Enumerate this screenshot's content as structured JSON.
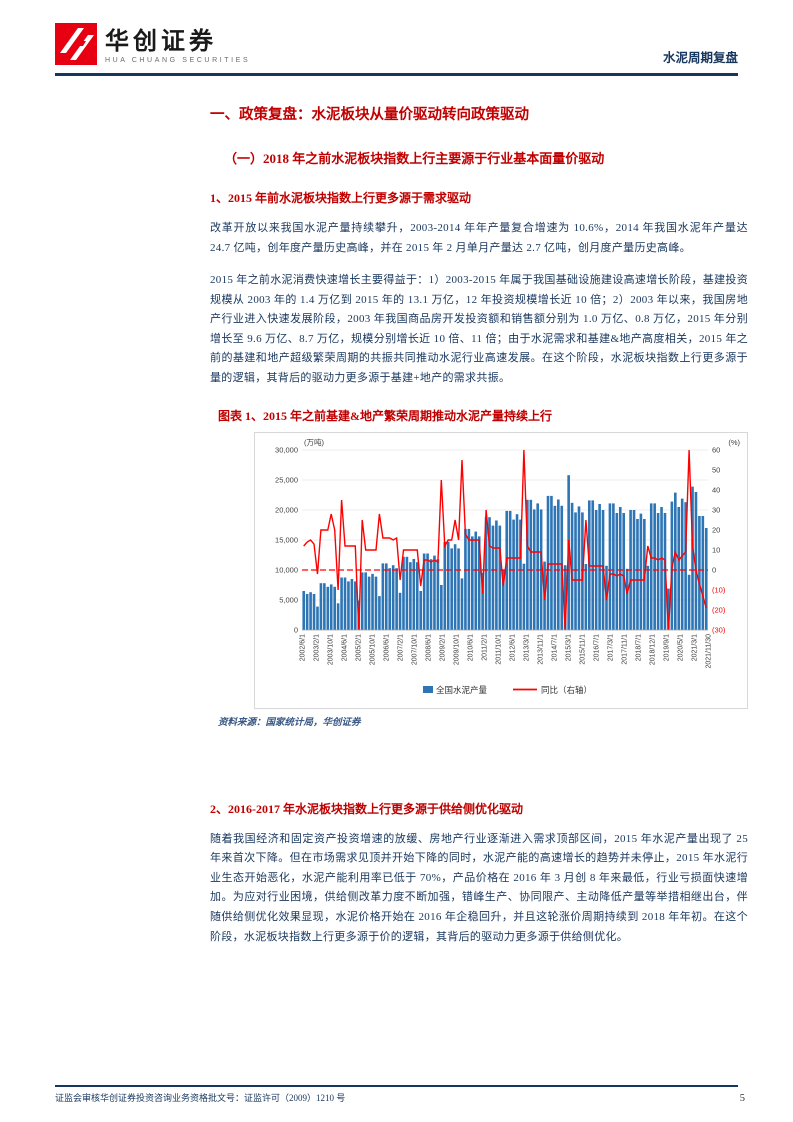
{
  "header": {
    "brand_cn": "华创证券",
    "brand_en": "HUA CHUANG SECURITIES",
    "doc_label": "水泥周期复盘"
  },
  "content": {
    "h1": "一、政策复盘：水泥板块从量价驱动转向政策驱动",
    "h2": "（一）2018 年之前水泥板块指数上行主要源于行业基本面量价驱动",
    "h3_1": "1、2015 年前水泥板块指数上行更多源于需求驱动",
    "para1": "改革开放以来我国水泥产量持续攀升，2003-2014 年年产量复合增速为 10.6%，2014 年我国水泥年产量达 24.7 亿吨，创年度产量历史高峰，并在 2015 年 2 月单月产量达 2.7 亿吨，创月度产量历史高峰。",
    "para2": "2015 年之前水泥消费快速增长主要得益于：1）2003-2015 年属于我国基础设施建设高速增长阶段，基建投资规模从 2003 年的 1.4 万亿到 2015 年的 13.1 万亿，12 年投资规模增长近 10 倍；2）2003 年以来，我国房地产行业进入快速发展阶段，2003 年我国商品房开发投资额和销售额分别为 1.0 万亿、0.8 万亿，2015 年分别增长至 9.6 万亿、8.7 万亿，规模分别增长近 10 倍、11 倍；由于水泥需求和基建&地产高度相关，2015 年之前的基建和地产超级繁荣周期的共振共同推动水泥行业高速发展。在这个阶段，水泥板块指数上行更多源于量的逻辑，其背后的驱动力更多源于基建+地产的需求共振。",
    "figure_caption": "图表 1、2015 年之前基建&地产繁荣周期推动水泥产量持续上行",
    "figure_source": "资料来源：国家统计局，华创证券",
    "h3_2": "2、2016-2017 年水泥板块指数上行更多源于供给侧优化驱动",
    "para3": "随着我国经济和固定资产投资增速的放缓、房地产行业逐渐进入需求顶部区间，2015 年水泥产量出现了 25 年来首次下降。但在市场需求见顶并开始下降的同时，水泥产能的高速增长的趋势并未停止，2015 年水泥行业生态开始恶化，水泥产能利用率已低于 70%，产品价格在 2016 年 3 月创 8 年来最低，行业亏损面快速增加。为应对行业困境，供给侧改革力度不断加强，错峰生产、协同限产、主动降低产量等举措相继出台，伴随供给侧优化效果显现，水泥价格开始在 2016 年企稳回升，并且这轮涨价周期持续到 2018 年年初。在这个阶段，水泥板块指数上行更多源于价的逻辑，其背后的驱动力更多源于供给侧优化。"
  },
  "footer": {
    "left": "证监会审核华创证券投资咨询业务资格批文号：证监许可（2009）1210 号",
    "page_number": "5"
  },
  "colors": {
    "heading_red": "#c00000",
    "body_blue": "#17365d",
    "navy_rule": "#17365d",
    "bar_blue": "#2e75b6",
    "line_red": "#ff0000",
    "logo_red": "#e60012"
  },
  "chart_data": {
    "type": "bar+line",
    "title": "2015 年之前基建&地产繁荣周期推动水泥产量持续上行",
    "note": "monthly series estimated from figure (bimonthly sampling 2002/6–2021/11)",
    "unit_left": "(万吨)",
    "unit_right": "(%)",
    "left_axis": {
      "min": 0,
      "max": 30000,
      "step": 5000,
      "labels": [
        "0",
        "5,000",
        "10,000",
        "15,000",
        "20,000",
        "25,000",
        "30,000"
      ]
    },
    "right_axis": {
      "min": -30,
      "max": 60,
      "step": 10,
      "labels": [
        "(30)",
        "(20)",
        "(10)",
        "0",
        "10",
        "20",
        "30",
        "40",
        "50",
        "60"
      ]
    },
    "zero_line": {
      "axis": "right",
      "value": 0,
      "style": "dashed",
      "color": "#ff0000"
    },
    "x_tick_labels": [
      "2002/6/1",
      "2003/2/1",
      "2003/10/1",
      "2004/6/1",
      "2005/2/1",
      "2005/10/1",
      "2006/6/1",
      "2007/2/1",
      "2007/10/1",
      "2008/6/1",
      "2009/2/1",
      "2009/10/1",
      "2010/6/1",
      "2011/2/1",
      "2011/10/1",
      "2012/6/1",
      "2013/3/1",
      "2013/11/1",
      "2014/7/1",
      "2015/3/1",
      "2015/11/1",
      "2016/7/1",
      "2017/3/1",
      "2017/11/1",
      "2018/7/1",
      "2018/12/1",
      "2019/9/1",
      "2020/5/1",
      "2021/3/1",
      "2021/11/30"
    ],
    "legend": [
      {
        "label": "全国水泥产量",
        "color": "#2e75b6",
        "type": "bar"
      },
      {
        "label": "同比（右轴）",
        "color": "#ff0000",
        "type": "line"
      }
    ],
    "production": [
      6500,
      6000,
      6300,
      6000,
      3900,
      7800,
      7800,
      7200,
      7600,
      7200,
      4450,
      8750,
      8750,
      8100,
      8500,
      8100,
      4900,
      9600,
      9600,
      8900,
      9350,
      8900,
      5650,
      11100,
      11100,
      10300,
      10800,
      10300,
      6200,
      12200,
      12200,
      11300,
      11850,
      11300,
      6500,
      12750,
      12750,
      11800,
      12400,
      11800,
      7500,
      14700,
      14700,
      13600,
      14300,
      13600,
      8600,
      16850,
      16850,
      15600,
      16400,
      15600,
      9550,
      18800,
      18800,
      17400,
      18250,
      17400,
      10100,
      19850,
      19850,
      18400,
      19300,
      18400,
      11050,
      21700,
      21700,
      20100,
      21100,
      20100,
      11400,
      22350,
      22350,
      20700,
      21750,
      20700,
      10800,
      25800,
      21200,
      19600,
      20600,
      19600,
      11000,
      21600,
      21600,
      20000,
      21000,
      20000,
      10700,
      21100,
      21100,
      19500,
      20500,
      19500,
      10200,
      20000,
      20000,
      18500,
      19400,
      18500,
      10700,
      21100,
      21100,
      19500,
      20500,
      19500,
      6900,
      21400,
      22900,
      20500,
      21900,
      21300,
      9200,
      23900,
      23000,
      19000,
      19000,
      17000
    ],
    "yoy": [
      12,
      14,
      15,
      13,
      -2,
      20,
      20,
      20,
      28,
      20,
      -10,
      35,
      12,
      12,
      12,
      12,
      -32,
      25,
      10,
      10,
      10,
      10,
      28,
      16,
      16,
      16,
      15,
      16,
      -5,
      10,
      10,
      10,
      10,
      10,
      -8,
      5,
      5,
      4,
      5,
      4,
      45,
      12,
      15,
      15,
      25,
      15,
      55,
      18,
      15,
      15,
      15,
      15,
      -12,
      30,
      12,
      11,
      11,
      11,
      -8,
      6,
      6,
      6,
      6,
      6,
      60,
      12,
      9,
      9,
      9,
      9,
      -15,
      3,
      3,
      3,
      3,
      3,
      -32,
      15,
      -5,
      -5,
      -5,
      -5,
      25,
      2,
      2,
      2,
      2,
      2,
      -15,
      -2,
      -2,
      -3,
      -2,
      -3,
      -12,
      -5,
      -5,
      -5,
      -5,
      -5,
      12,
      6,
      6,
      5,
      6,
      5,
      -30,
      1,
      9,
      5,
      7,
      9,
      60,
      12,
      0,
      -7,
      -13,
      -19
    ]
  }
}
